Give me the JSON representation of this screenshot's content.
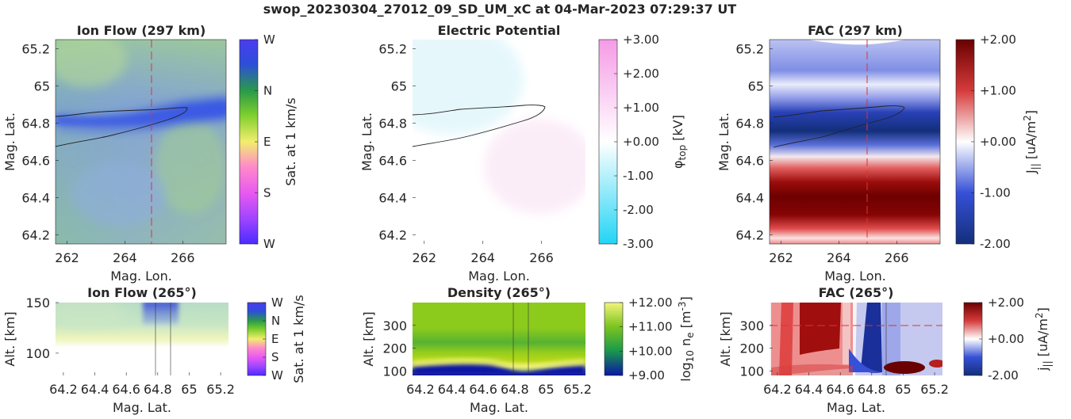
{
  "suptitle": "swop_20230304_27012_09_SD_UM_xC at 04-Mar-2023 07:29:37 UT",
  "chart_data": [
    {
      "id": "ionflow_top",
      "type": "heatmap",
      "title": "Ion Flow (297 km)",
      "xlabel": "Mag. Lon.",
      "ylabel": "Mag. Lat.",
      "xlim": [
        261.6,
        267.5
      ],
      "ylim": [
        64.15,
        65.25
      ],
      "xticks": [
        "262",
        "264",
        "266"
      ],
      "xtick_values": [
        262,
        264,
        266
      ],
      "yticks": [
        "64.2",
        "64.4",
        "64.6",
        "64.8",
        "65",
        "65.2"
      ],
      "ytick_values": [
        64.2,
        64.4,
        64.6,
        64.8,
        65.0,
        65.2
      ],
      "reference_line": {
        "axis": "x",
        "value": 265,
        "color": "#dd3333",
        "style": "dashed"
      },
      "colorbar": {
        "label": "Sat. at 1 km/s",
        "ticks": [
          "W",
          "N",
          "E",
          "S",
          "W"
        ],
        "colors": [
          "#3a2cff",
          "#c44dff",
          "#ff6ad5",
          "#f6f07a",
          "#55cc33",
          "#2a9a4a",
          "#2c3cdf",
          "#3a2cff"
        ]
      }
    },
    {
      "id": "potential_top",
      "type": "heatmap",
      "title": "Electric Potential",
      "xlabel": "Mag. Lon.",
      "ylabel": "Mag. Lat.",
      "xlim": [
        261.6,
        267.5
      ],
      "ylim": [
        64.15,
        65.25
      ],
      "xticks": [
        "262",
        "264",
        "266"
      ],
      "xtick_values": [
        262,
        264,
        266
      ],
      "yticks": [
        "64.2",
        "64.4",
        "64.6",
        "64.8",
        "65",
        "65.2"
      ],
      "ytick_values": [
        64.2,
        64.4,
        64.6,
        64.8,
        65.0,
        65.2
      ],
      "colorbar": {
        "label_main": "φ",
        "label_sub": "top",
        "label_unit": " [kV]",
        "ticks": [
          "+3.00",
          "+2.00",
          "+1.00",
          "+0.00",
          "-1.00",
          "-2.00",
          "-3.00"
        ],
        "range": [
          -3,
          3
        ],
        "colors": [
          "#22d4f5",
          "#ffffff",
          "#f59be6"
        ]
      }
    },
    {
      "id": "fac_top",
      "type": "heatmap",
      "title": "FAC (297 km)",
      "xlabel": "Mag. Lon.",
      "ylabel": "Mag. Lat.",
      "xlim": [
        261.6,
        267.5
      ],
      "ylim": [
        64.15,
        65.25
      ],
      "xticks": [
        "262",
        "264",
        "266"
      ],
      "xtick_values": [
        262,
        264,
        266
      ],
      "yticks": [
        "64.2",
        "64.4",
        "64.6",
        "64.8",
        "65",
        "65.2"
      ],
      "ytick_values": [
        64.2,
        64.4,
        64.6,
        64.8,
        65.0,
        65.2
      ],
      "reference_line": {
        "axis": "x",
        "value": 265,
        "color": "#dd3333",
        "style": "dashed"
      },
      "colorbar": {
        "label_main": "J",
        "label_sub": "||",
        "label_unit": " [uA/m",
        "label_sup": "2",
        "label_end": "]",
        "ticks": [
          "+2.00",
          "+1.00",
          "+0.00",
          "-1.00",
          "-2.00"
        ],
        "range": [
          -2,
          2
        ],
        "colors": [
          "#132f7a",
          "#3650d8",
          "#ffffff",
          "#d63b3b",
          "#6a0000"
        ]
      }
    },
    {
      "id": "ionflow_bottom",
      "type": "heatmap",
      "title": "Ion Flow (265°)",
      "xlabel": "Mag. Lat.",
      "ylabel": "Alt. [km]",
      "xlim": [
        64.15,
        65.25
      ],
      "ylim": [
        78,
        150
      ],
      "xticks": [
        "64.2",
        "64.4",
        "64.6",
        "64.8",
        "65",
        "65.2"
      ],
      "xtick_values": [
        64.2,
        64.4,
        64.6,
        64.8,
        65.0,
        65.2
      ],
      "yticks": [
        "100",
        "150"
      ],
      "ytick_values": [
        100,
        150
      ],
      "vertical_lines": [
        64.78,
        64.88
      ],
      "colorbar": {
        "label": "Sat. at 1 km/s",
        "ticks": [
          "W",
          "N",
          "E",
          "S",
          "W"
        ],
        "colors": [
          "#3a2cff",
          "#c44dff",
          "#ff6ad5",
          "#f6f07a",
          "#55cc33",
          "#2a9a4a",
          "#2c3cdf",
          "#3a2cff"
        ]
      }
    },
    {
      "id": "density_bottom",
      "type": "heatmap",
      "title": "Density (265°)",
      "xlabel": "Mag. Lat.",
      "ylabel": "Alt. [km]",
      "xlim": [
        64.15,
        65.25
      ],
      "ylim": [
        80,
        400
      ],
      "xticks": [
        "64.2",
        "64.4",
        "64.6",
        "64.8",
        "65",
        "65.2"
      ],
      "xtick_values": [
        64.2,
        64.4,
        64.6,
        64.8,
        65.0,
        65.2
      ],
      "yticks": [
        "100",
        "200",
        "300"
      ],
      "ytick_values": [
        100,
        200,
        300
      ],
      "vertical_lines": [
        64.78,
        64.88
      ],
      "colorbar": {
        "label_main": "log",
        "label_sub": "10",
        "label_unit": " n",
        "label_sub2": "e",
        "label_end": " [m",
        "label_sup": "-3",
        "label_close": "]",
        "ticks": [
          "+12.00",
          "+11.00",
          "+10.00",
          "+9.00"
        ],
        "range": [
          9,
          12
        ],
        "colors": [
          "#0b16a6",
          "#1a9a4a",
          "#7cc41f",
          "#f3f57a"
        ]
      }
    },
    {
      "id": "fac_bottom",
      "type": "heatmap",
      "title": "FAC (265°)",
      "xlabel": "Mag. Lat.",
      "ylabel": "Alt. [km]",
      "xlim": [
        64.15,
        65.25
      ],
      "ylim": [
        80,
        400
      ],
      "xticks": [
        "64.2",
        "64.4",
        "64.6",
        "64.8",
        "65",
        "65.2"
      ],
      "xtick_values": [
        64.2,
        64.4,
        64.6,
        64.8,
        65.0,
        65.2
      ],
      "yticks": [
        "100",
        "200",
        "300"
      ],
      "ytick_values": [
        100,
        200,
        300
      ],
      "reference_line": {
        "axis": "y",
        "value": 300,
        "color": "#dd3333",
        "style": "dashed"
      },
      "vertical_lines": [
        64.82
      ],
      "colorbar": {
        "label_main": "j",
        "label_sub": "||",
        "label_unit": " [uA/m",
        "label_sup": "2",
        "label_end": "]",
        "ticks": [
          "+2.00",
          "+0.00",
          "-2.00"
        ],
        "range": [
          -2,
          2
        ],
        "colors": [
          "#132f7a",
          "#3650d8",
          "#ffffff",
          "#d63b3b",
          "#6a0000"
        ]
      }
    }
  ]
}
